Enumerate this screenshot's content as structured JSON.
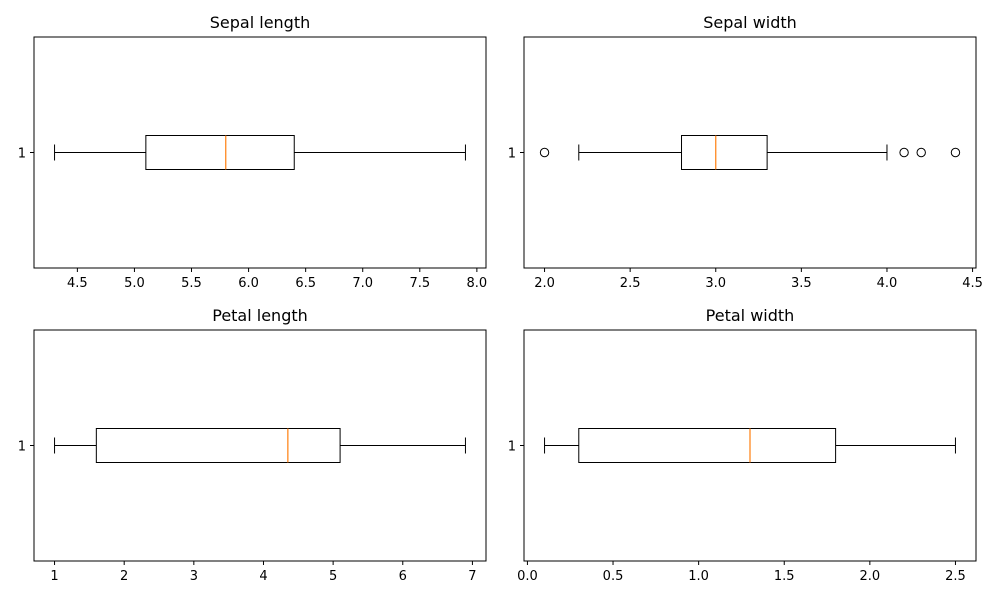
{
  "chart_data": [
    {
      "type": "box",
      "orientation": "horizontal",
      "title": "Sepal length",
      "xlabel": "",
      "ylabel": "",
      "xlim": [
        4.12,
        8.08
      ],
      "xticks": [
        "4.5",
        "5.0",
        "5.5",
        "6.0",
        "6.5",
        "7.0",
        "7.5",
        "8.0"
      ],
      "yticks": [
        "1"
      ],
      "series": [
        {
          "position": "1",
          "whisker_low": 4.3,
          "q1": 5.1,
          "median": 5.8,
          "q3": 6.4,
          "whisker_high": 7.9,
          "outliers": []
        }
      ]
    },
    {
      "type": "box",
      "orientation": "horizontal",
      "title": "Sepal width",
      "xlabel": "",
      "ylabel": "",
      "xlim": [
        1.88,
        4.52
      ],
      "xticks": [
        "2.0",
        "2.5",
        "3.0",
        "3.5",
        "4.0",
        "4.5"
      ],
      "yticks": [
        "1"
      ],
      "series": [
        {
          "position": "1",
          "whisker_low": 2.2,
          "q1": 2.8,
          "median": 3.0,
          "q3": 3.3,
          "whisker_high": 4.0,
          "outliers": [
            2.0,
            4.1,
            4.2,
            4.4
          ]
        }
      ]
    },
    {
      "type": "box",
      "orientation": "horizontal",
      "title": "Petal length",
      "xlabel": "",
      "ylabel": "",
      "xlim": [
        0.705,
        7.195
      ],
      "xticks": [
        "1",
        "2",
        "3",
        "4",
        "5",
        "6",
        "7"
      ],
      "yticks": [
        "1"
      ],
      "series": [
        {
          "position": "1",
          "whisker_low": 1.0,
          "q1": 1.6,
          "median": 4.35,
          "q3": 5.1,
          "whisker_high": 6.9,
          "outliers": []
        }
      ]
    },
    {
      "type": "box",
      "orientation": "horizontal",
      "title": "Petal width",
      "xlabel": "",
      "ylabel": "",
      "xlim": [
        -0.02,
        2.62
      ],
      "xticks": [
        "0.0",
        "0.5",
        "1.0",
        "1.5",
        "2.0",
        "2.5"
      ],
      "yticks": [
        "1"
      ],
      "series": [
        {
          "position": "1",
          "whisker_low": 0.1,
          "q1": 0.3,
          "median": 1.3,
          "q3": 1.8,
          "whisker_high": 2.5,
          "outliers": []
        }
      ]
    }
  ],
  "colors": {
    "box": "#000000",
    "median": "#ff7f0e",
    "background": "#ffffff"
  }
}
